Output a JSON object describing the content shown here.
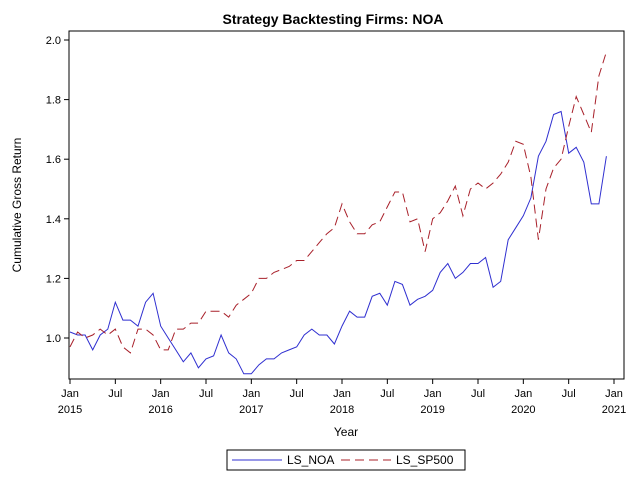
{
  "chart_data": {
    "type": "line",
    "title": "Strategy Backtesting  Firms: NOA",
    "xlabel": "Year",
    "ylabel": "Cumulative Gross Return",
    "ylim": [
      0.87,
      2.03
    ],
    "yticks": [
      1.0,
      1.2,
      1.4,
      1.6,
      1.8,
      2.0
    ],
    "ytick_labels": [
      "1.0",
      "1.2",
      "1.4",
      "1.6",
      "1.8",
      "2.0"
    ],
    "xlim": [
      "2015-01",
      "2021-01"
    ],
    "xticks": [
      {
        "date": "2015-01",
        "line1": "Jan",
        "line2": "2015"
      },
      {
        "date": "2015-07",
        "line1": "Jul",
        "line2": ""
      },
      {
        "date": "2016-01",
        "line1": "Jan",
        "line2": "2016"
      },
      {
        "date": "2016-07",
        "line1": "Jul",
        "line2": ""
      },
      {
        "date": "2017-01",
        "line1": "Jan",
        "line2": "2017"
      },
      {
        "date": "2017-07",
        "line1": "Jul",
        "line2": ""
      },
      {
        "date": "2018-01",
        "line1": "Jan",
        "line2": "2018"
      },
      {
        "date": "2018-07",
        "line1": "Jul",
        "line2": ""
      },
      {
        "date": "2019-01",
        "line1": "Jan",
        "line2": "2019"
      },
      {
        "date": "2019-07",
        "line1": "Jul",
        "line2": ""
      },
      {
        "date": "2020-01",
        "line1": "Jan",
        "line2": "2020"
      },
      {
        "date": "2020-07",
        "line1": "Jul",
        "line2": ""
      },
      {
        "date": "2021-01",
        "line1": "Jan",
        "line2": "2021"
      }
    ],
    "legend_position": "bottom",
    "grid": false,
    "series": [
      {
        "name": "LS_NOA",
        "color": "#2f2fd0",
        "dash": "solid",
        "x": [
          "2015-01",
          "2015-02",
          "2015-03",
          "2015-04",
          "2015-05",
          "2015-06",
          "2015-07",
          "2015-08",
          "2015-09",
          "2015-10",
          "2015-11",
          "2015-12",
          "2016-01",
          "2016-02",
          "2016-03",
          "2016-04",
          "2016-05",
          "2016-06",
          "2016-07",
          "2016-08",
          "2016-09",
          "2016-10",
          "2016-11",
          "2016-12",
          "2017-01",
          "2017-02",
          "2017-03",
          "2017-04",
          "2017-05",
          "2017-06",
          "2017-07",
          "2017-08",
          "2017-09",
          "2017-10",
          "2017-11",
          "2017-12",
          "2018-01",
          "2018-02",
          "2018-03",
          "2018-04",
          "2018-05",
          "2018-06",
          "2018-07",
          "2018-08",
          "2018-09",
          "2018-10",
          "2018-11",
          "2018-12",
          "2019-01",
          "2019-02",
          "2019-03",
          "2019-04",
          "2019-05",
          "2019-06",
          "2019-07",
          "2019-08",
          "2019-09",
          "2019-10",
          "2019-11",
          "2019-12",
          "2020-01",
          "2020-02",
          "2020-03",
          "2020-04",
          "2020-05",
          "2020-06",
          "2020-07",
          "2020-08",
          "2020-09",
          "2020-10",
          "2020-11",
          "2020-12"
        ],
        "y": [
          1.02,
          1.01,
          1.01,
          0.96,
          1.01,
          1.03,
          1.12,
          1.06,
          1.06,
          1.04,
          1.12,
          1.15,
          1.04,
          1.0,
          0.96,
          0.92,
          0.95,
          0.9,
          0.93,
          0.94,
          1.01,
          0.95,
          0.93,
          0.88,
          0.88,
          0.91,
          0.93,
          0.93,
          0.95,
          0.96,
          0.97,
          1.01,
          1.03,
          1.01,
          1.01,
          0.98,
          1.04,
          1.09,
          1.07,
          1.07,
          1.14,
          1.15,
          1.11,
          1.19,
          1.18,
          1.11,
          1.13,
          1.14,
          1.16,
          1.22,
          1.25,
          1.2,
          1.22,
          1.25,
          1.25,
          1.27,
          1.17,
          1.19,
          1.33,
          1.37,
          1.41,
          1.47,
          1.61,
          1.66,
          1.75,
          1.76,
          1.62,
          1.64,
          1.59,
          1.45,
          1.45,
          1.61
        ]
      },
      {
        "name": "LS_SP500",
        "color": "#a8202a",
        "dash": "dashed",
        "x": [
          "2015-01",
          "2015-02",
          "2015-03",
          "2015-04",
          "2015-05",
          "2015-06",
          "2015-07",
          "2015-08",
          "2015-09",
          "2015-10",
          "2015-11",
          "2015-12",
          "2016-01",
          "2016-02",
          "2016-03",
          "2016-04",
          "2016-05",
          "2016-06",
          "2016-07",
          "2016-08",
          "2016-09",
          "2016-10",
          "2016-11",
          "2016-12",
          "2017-01",
          "2017-02",
          "2017-03",
          "2017-04",
          "2017-05",
          "2017-06",
          "2017-07",
          "2017-08",
          "2017-09",
          "2017-10",
          "2017-11",
          "2017-12",
          "2018-01",
          "2018-02",
          "2018-03",
          "2018-04",
          "2018-05",
          "2018-06",
          "2018-07",
          "2018-08",
          "2018-09",
          "2018-10",
          "2018-11",
          "2018-12",
          "2019-01",
          "2019-02",
          "2019-03",
          "2019-04",
          "2019-05",
          "2019-06",
          "2019-07",
          "2019-08",
          "2019-09",
          "2019-10",
          "2019-11",
          "2019-12",
          "2020-01",
          "2020-02",
          "2020-03",
          "2020-04",
          "2020-05",
          "2020-06",
          "2020-07",
          "2020-08",
          "2020-09",
          "2020-10",
          "2020-11",
          "2020-12"
        ],
        "y": [
          0.97,
          1.02,
          1.0,
          1.01,
          1.03,
          1.01,
          1.03,
          0.97,
          0.95,
          1.03,
          1.03,
          1.01,
          0.96,
          0.96,
          1.03,
          1.03,
          1.05,
          1.05,
          1.09,
          1.09,
          1.09,
          1.07,
          1.11,
          1.13,
          1.15,
          1.2,
          1.2,
          1.22,
          1.23,
          1.24,
          1.26,
          1.26,
          1.29,
          1.32,
          1.35,
          1.37,
          1.45,
          1.39,
          1.35,
          1.35,
          1.38,
          1.39,
          1.44,
          1.49,
          1.49,
          1.39,
          1.4,
          1.29,
          1.4,
          1.42,
          1.46,
          1.51,
          1.41,
          1.5,
          1.52,
          1.5,
          1.52,
          1.55,
          1.59,
          1.66,
          1.65,
          1.54,
          1.33,
          1.5,
          1.57,
          1.6,
          1.71,
          1.81,
          1.75,
          1.69,
          1.88,
          1.96
        ]
      }
    ]
  }
}
